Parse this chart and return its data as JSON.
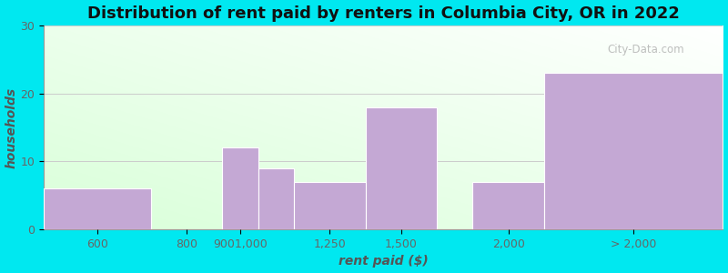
{
  "title": "Distribution of rent paid by renters in Columbia City, OR in 2022",
  "xlabel": "rent paid ($)",
  "ylabel": "households",
  "tick_labels": [
    "600",
    "800",
    "9001,000",
    "1,250",
    "1,500",
    "2,000",
    "> 2,000"
  ],
  "bar_color": "#c4a8d4",
  "bar_edgecolor": "#ffffff",
  "ylim": [
    0,
    30
  ],
  "yticks": [
    0,
    10,
    20,
    30
  ],
  "background_outer": "#00e8f0",
  "grid_color": "#cccccc",
  "title_fontsize": 13,
  "axis_label_fontsize": 10,
  "tick_fontsize": 9,
  "watermark_text": "City-Data.com",
  "bar_lefts": [
    0.0,
    1.5,
    2.5,
    3.0,
    3.5,
    4.5,
    6.0,
    7.0
  ],
  "bar_rights": [
    1.5,
    2.5,
    3.0,
    3.5,
    4.5,
    5.5,
    7.0,
    9.5
  ],
  "bar_heights": [
    6,
    0,
    12,
    9,
    7,
    18,
    7,
    23
  ],
  "tick_x": [
    0.75,
    2.0,
    2.75,
    4.0,
    5.0,
    6.5,
    8.25
  ],
  "xlim": [
    0,
    9.5
  ]
}
